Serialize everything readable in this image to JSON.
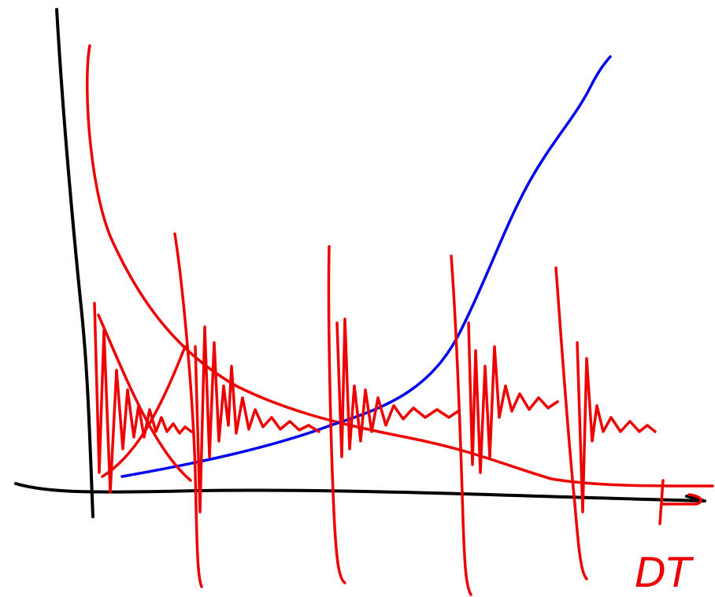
{
  "axis_label": "DT"
}
